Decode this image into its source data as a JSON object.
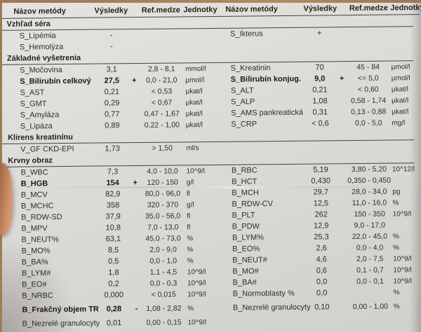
{
  "document_type": "lab-results-report",
  "colors": {
    "paper": "#dedcd9",
    "ink": "#2e2d29",
    "table_surface": "#a0804f",
    "finger_skin": "#c98c66"
  },
  "header": {
    "name": "Názov metódy",
    "result": "Výsledky",
    "ref": "Ref.medze",
    "unit": "Jednotky"
  },
  "sections": [
    {
      "title": "Vzhľad séra",
      "rows": [
        {
          "left": {
            "name": "S_Lipémia",
            "result": "-",
            "flag": "",
            "ref": "",
            "unit": ""
          },
          "right": {
            "name": "S_Ikterus",
            "result": "+",
            "flag": "",
            "ref": "",
            "unit": ""
          }
        },
        {
          "left": {
            "name": "S_Hemolýza",
            "result": "-",
            "flag": "",
            "ref": "",
            "unit": ""
          },
          "right": null
        }
      ]
    },
    {
      "title": "Základné vyšetrenia",
      "rows": [
        {
          "left": {
            "name": "S_Močovina",
            "result": "3,1",
            "flag": "",
            "ref": "2,8 - 8,1",
            "unit": "mmol/l"
          },
          "right": {
            "name": "S_Kreatinin",
            "result": "70",
            "flag": "",
            "ref": "45 - 84",
            "unit": "µmol/l"
          }
        },
        {
          "left": {
            "name": "S_Bilirubín celkový",
            "result": "27,5",
            "flag": "+",
            "ref": "0,0 - 21,0",
            "unit": "µmol/l",
            "bold": true
          },
          "right": {
            "name": "S_Bilirubín konjug.",
            "result": "9,0",
            "flag": "+",
            "ref": "<= 5,0",
            "unit": "µmol/l",
            "bold": true
          }
        },
        {
          "left": {
            "name": "S_AST",
            "result": "0,21",
            "flag": "",
            "ref": "< 0,53",
            "unit": "µkat/l"
          },
          "right": {
            "name": "S_ALT",
            "result": "0,21",
            "flag": "",
            "ref": "< 0,60",
            "unit": "µkat/l"
          }
        },
        {
          "left": {
            "name": "S_GMT",
            "result": "0,29",
            "flag": "",
            "ref": "< 0,67",
            "unit": "µkat/l"
          },
          "right": {
            "name": "S_ALP",
            "result": "1,08",
            "flag": "",
            "ref": "0,58 - 1,74",
            "unit": "µkat/l"
          }
        },
        {
          "left": {
            "name": "S_Amyláza",
            "result": "0,77",
            "flag": "",
            "ref": "0,47 - 1,67",
            "unit": "µkat/l"
          },
          "right": {
            "name": "S_AMS pankreatická",
            "result": "0,31",
            "flag": "",
            "ref": "0,13 - 0,88",
            "unit": "µkat/l"
          }
        },
        {
          "left": {
            "name": "S_Lipáza",
            "result": "0,89",
            "flag": "",
            "ref": "0,22 - 1,00",
            "unit": "µkat/l"
          },
          "right": {
            "name": "S_CRP",
            "result": "< 0,6",
            "flag": "",
            "ref": "0,0 - 5,0",
            "unit": "mg/l"
          }
        }
      ]
    },
    {
      "title": "Klirens kreatinínu",
      "rows": [
        {
          "left": {
            "name": "V_GF CKD-EPI",
            "result": "1,73",
            "flag": "",
            "ref": "> 1,50",
            "unit": "ml/s"
          },
          "right": null
        }
      ]
    },
    {
      "title": "Krvny obraz",
      "rows": [
        {
          "left": {
            "name": "B_WBC",
            "result": "7,3",
            "flag": "",
            "ref": "4,0 - 10,0",
            "unit": "10^9/l"
          },
          "right": {
            "name": "B_RBC",
            "result": "5,19",
            "flag": "",
            "ref": "3,80 - 5,20",
            "unit": "10^12/l"
          }
        },
        {
          "left": {
            "name": "B_HGB",
            "result": "154",
            "flag": "+",
            "ref": "120 - 150",
            "unit": "g/l",
            "bold": true
          },
          "right": {
            "name": "B_HCT",
            "result": "0,430",
            "flag": "",
            "ref": "0,350 - 0,450",
            "unit": ""
          }
        },
        {
          "left": {
            "name": "B_MCV",
            "result": "82,9",
            "flag": "",
            "ref": "80,0 - 96,0",
            "unit": "fl"
          },
          "right": {
            "name": "B_MCH",
            "result": "29,7",
            "flag": "",
            "ref": "28,0 - 34,0",
            "unit": "pg"
          }
        },
        {
          "left": {
            "name": "B_MCHC",
            "result": "358",
            "flag": "",
            "ref": "320 - 370",
            "unit": "g/l"
          },
          "right": {
            "name": "B_RDW-CV",
            "result": "12,5",
            "flag": "",
            "ref": "11,0 - 16,0",
            "unit": "%"
          }
        },
        {
          "left": {
            "name": "B_RDW-SD",
            "result": "37,9",
            "flag": "",
            "ref": "35,0 - 56,0",
            "unit": "fl"
          },
          "right": {
            "name": "B_PLT",
            "result": "262",
            "flag": "",
            "ref": "150 - 350",
            "unit": "10^9/l"
          }
        },
        {
          "left": {
            "name": "B_MPV",
            "result": "10,8",
            "flag": "",
            "ref": "7,0 - 13,0",
            "unit": "fl"
          },
          "right": {
            "name": "B_PDW",
            "result": "12,9",
            "flag": "",
            "ref": "9,0 - 17,0",
            "unit": ""
          }
        },
        {
          "left": {
            "name": "B_NEUT%",
            "result": "63,1",
            "flag": "",
            "ref": "45,0 - 73,0",
            "unit": "%"
          },
          "right": {
            "name": "B_LYM%",
            "result": "25,3",
            "flag": "",
            "ref": "22,0 - 45,0",
            "unit": "%"
          }
        },
        {
          "left": {
            "name": "B_MO%",
            "result": "8,5",
            "flag": "",
            "ref": "2,0 - 9,0",
            "unit": "%"
          },
          "right": {
            "name": "B_EO%",
            "result": "2,6",
            "flag": "",
            "ref": "0,0 - 4,0",
            "unit": "%"
          }
        },
        {
          "left": {
            "name": "B_BA%",
            "result": "0,5",
            "flag": "",
            "ref": "0,0 - 1,0",
            "unit": "%"
          },
          "right": {
            "name": "B_NEUT#",
            "result": "4,6",
            "flag": "",
            "ref": "2,0 - 7,5",
            "unit": "10^9/l"
          }
        },
        {
          "left": {
            "name": "B_LYM#",
            "result": "1,8",
            "flag": "",
            "ref": "1,1 - 4,5",
            "unit": "10^9/l"
          },
          "right": {
            "name": "B_MO#",
            "result": "0,6",
            "flag": "",
            "ref": "0,1 - 0,7",
            "unit": "10^9/l"
          }
        },
        {
          "left": {
            "name": "B_EO#",
            "result": "0,2",
            "flag": "",
            "ref": "0,0 - 0,3",
            "unit": "10^9/l"
          },
          "right": {
            "name": "B_BA#",
            "result": "0,0",
            "flag": "",
            "ref": "0,0 - 0,1",
            "unit": "10^9/l"
          }
        },
        {
          "left": {
            "name": "B_NRBC",
            "result": "0,000",
            "flag": "",
            "ref": "< 0,015",
            "unit": "10^9/l"
          },
          "right": {
            "name": "B_Normoblasty %",
            "result": "0,0",
            "flag": "",
            "ref": "",
            "unit": "%"
          }
        },
        {
          "left": {
            "name": "B_Frakčný objem TR",
            "result": "0,28",
            "flag": "-",
            "ref": "1,08 - 2,82",
            "unit": "%",
            "bold": true,
            "gap": true
          },
          "right": {
            "name": "B_Nezrelé granulocyty",
            "result": "0,10",
            "flag": "",
            "ref": "0,00 - 1,00",
            "unit": "%"
          }
        },
        {
          "left": {
            "name": "B_Nezrelé granulocyty",
            "result": "0,01",
            "flag": "",
            "ref": "0,00 - 0,15",
            "unit": "10^9/l",
            "gap": true
          },
          "right": null
        }
      ]
    }
  ]
}
